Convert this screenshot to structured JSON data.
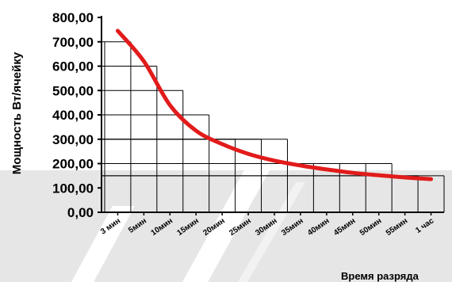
{
  "chart_data": {
    "type": "line",
    "xlabel": "Время разряда",
    "ylabel": "Мощность Вт/ячейку",
    "ylim": [
      0,
      800
    ],
    "y_ticks": [
      "0,00",
      "100,00",
      "200,00",
      "300,00",
      "400,00",
      "500,00",
      "600,00",
      "700,00",
      "800,00"
    ],
    "categories": [
      "3 мин",
      "5мин",
      "10мин",
      "15мин",
      "20мин",
      "25мин",
      "30мин",
      "35мин",
      "40мин",
      "45мин",
      "50мин",
      "55мин",
      "1 час"
    ],
    "bar_levels": [
      700,
      600,
      500,
      400,
      300,
      300,
      300,
      200,
      200,
      200,
      200,
      150,
      150
    ],
    "series": [
      {
        "values": [
          745,
          620,
          440,
          335,
          280,
          240,
          212,
          192,
          176,
          162,
          152,
          143,
          136
        ],
        "color": "#e21b1b"
      }
    ],
    "grid": true,
    "colors": {
      "axis": "#000000",
      "grid": "#000000",
      "background_band": "#e6e6e6",
      "line": "#e21b1b"
    }
  }
}
